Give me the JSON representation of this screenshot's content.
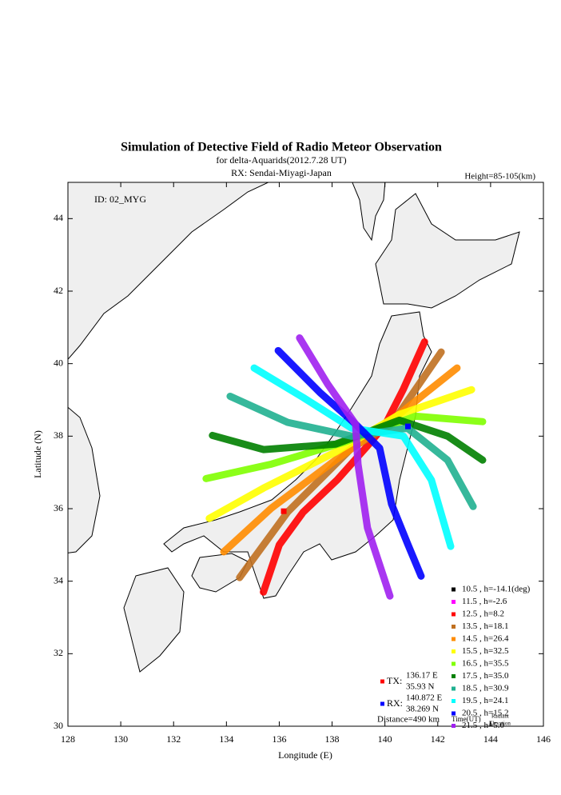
{
  "chart_data": {
    "type": "line",
    "title": "Simulation of Detective Field of Radio Meteor Observation",
    "subtitle": "for delta-Aquarids(2012.7.28 UT)",
    "receiver": "RX: Sendai-Miyagi-Japan",
    "height_note": "Height=85-105(km)",
    "id_label": "ID: 02_MYG",
    "x_label": "Longitude (E)",
    "y_label": "Latitude (N)",
    "xlim": [
      128,
      146
    ],
    "ylim": [
      30,
      45
    ],
    "xticks": [
      128,
      130,
      132,
      134,
      136,
      138,
      140,
      142,
      144,
      146
    ],
    "yticks": [
      30,
      32,
      34,
      36,
      38,
      40,
      42,
      44
    ],
    "series": [
      {
        "name": "10.5 , h=-14.1(deg)",
        "color": "#000000",
        "x": [],
        "values": []
      },
      {
        "name": "11.5 , h=-2.6",
        "color": "#ff00ff",
        "x": [],
        "values": []
      },
      {
        "name": "12.5 , h=8.2",
        "color": "#ff0000",
        "x": [
          135.4,
          136.0,
          136.9,
          138.2,
          139.3,
          140.0,
          140.7,
          141.5
        ],
        "values": [
          33.7,
          35.0,
          35.9,
          36.8,
          37.7,
          38.3,
          39.3,
          40.6
        ]
      },
      {
        "name": "13.5 , h=18.1",
        "color": "#c07020",
        "x": [
          134.5,
          136.32,
          138.74,
          140.25,
          142.13
        ],
        "values": [
          34.1,
          35.91,
          37.67,
          38.33,
          40.32
        ]
      },
      {
        "name": "14.5 , h=26.4",
        "color": "#ff8c00",
        "x": [
          133.9,
          135.71,
          138.13,
          140.25,
          142.73
        ],
        "values": [
          34.81,
          36.02,
          37.34,
          38.44,
          39.88
        ]
      },
      {
        "name": "15.5 , h=32.5",
        "color": "#ffff00",
        "x": [
          133.35,
          135.41,
          138.13,
          140.55,
          143.28
        ],
        "values": [
          35.73,
          36.57,
          37.56,
          38.6,
          39.28
        ]
      },
      {
        "name": "16.5 , h=35.5",
        "color": "#80ff00",
        "x": [
          133.23,
          135.71,
          138.44,
          141.16,
          143.7
        ],
        "values": [
          36.83,
          37.23,
          37.83,
          38.55,
          38.4
        ]
      },
      {
        "name": "17.5 , h=35.0",
        "color": "#008000",
        "x": [
          133.47,
          135.41,
          138.13,
          140.55,
          142.37,
          143.7
        ],
        "values": [
          38.02,
          37.63,
          37.78,
          38.44,
          38.0,
          37.34
        ]
      },
      {
        "name": "18.5 , h=30.9",
        "color": "#20b090",
        "x": [
          134.14,
          136.32,
          138.74,
          140.86,
          142.37,
          143.34
        ],
        "values": [
          39.1,
          38.38,
          38.0,
          38.22,
          37.34,
          36.06
        ]
      },
      {
        "name": "19.5 , h=24.1",
        "color": "#00ffff",
        "x": [
          135.05,
          136.92,
          138.74,
          140.7,
          141.76,
          142.49
        ],
        "values": [
          39.88,
          39.06,
          38.22,
          38.0,
          36.79,
          34.96
        ]
      },
      {
        "name": "20.5 , h=15.2",
        "color": "#0000ff",
        "x": [
          135.96,
          137.53,
          138.89,
          139.8,
          140.25,
          140.86,
          141.37
        ],
        "values": [
          40.36,
          39.21,
          38.33,
          37.67,
          36.13,
          35.03,
          34.14
        ]
      },
      {
        "name": "21.5 , h=5.0",
        "color": "#a020f0",
        "x": [
          136.77,
          137.83,
          138.89,
          138.98,
          139.34,
          140.19
        ],
        "values": [
          40.71,
          39.44,
          38.33,
          37.23,
          35.47,
          33.59
        ]
      }
    ],
    "stations": [
      {
        "label": "TX:",
        "lon": 136.17,
        "lat": 35.93,
        "lon_label": "136.17 E",
        "lat_label": "35.93 N",
        "color": "#ff0000"
      },
      {
        "label": "RX:",
        "lon": 140.872,
        "lat": 38.269,
        "lon_label": "140.872 E",
        "lat_label": "38.269 N",
        "color": "#0000ff"
      }
    ],
    "distance": "Distance=490 km",
    "legend_time": "Time(UT)",
    "legend_radiant": "Radiant",
    "legend_elevation": "Elevation"
  }
}
